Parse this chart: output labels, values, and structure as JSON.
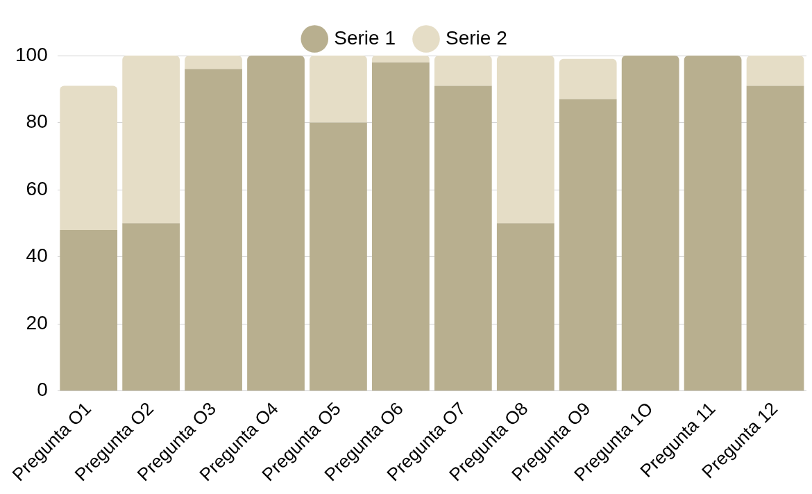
{
  "chart_data": {
    "type": "bar",
    "stacked": true,
    "categories": [
      "Pregunta O1",
      "Pregunta O2",
      "Pregunta O3",
      "Pregunta O4",
      "Pregunta O5",
      "Pregunta O6",
      "Pregunta O7",
      "Pregunta O8",
      "Pregunta O9",
      "Pregunta 1O",
      "Pregunta 11",
      "Pregunta 12"
    ],
    "series": [
      {
        "name": "Serie 1",
        "color": "#b8af8f",
        "values": [
          48,
          50,
          96,
          100,
          80,
          98,
          91,
          50,
          87,
          100,
          100,
          91
        ]
      },
      {
        "name": "Serie 2",
        "color": "#e5ddc6",
        "values": [
          43,
          50,
          4,
          0,
          20,
          2,
          9,
          50,
          12,
          0,
          0,
          9
        ]
      }
    ],
    "ylim": [
      0,
      100
    ],
    "yticks": [
      0,
      20,
      40,
      60,
      80,
      100
    ],
    "grid": "y",
    "legend": "top"
  }
}
